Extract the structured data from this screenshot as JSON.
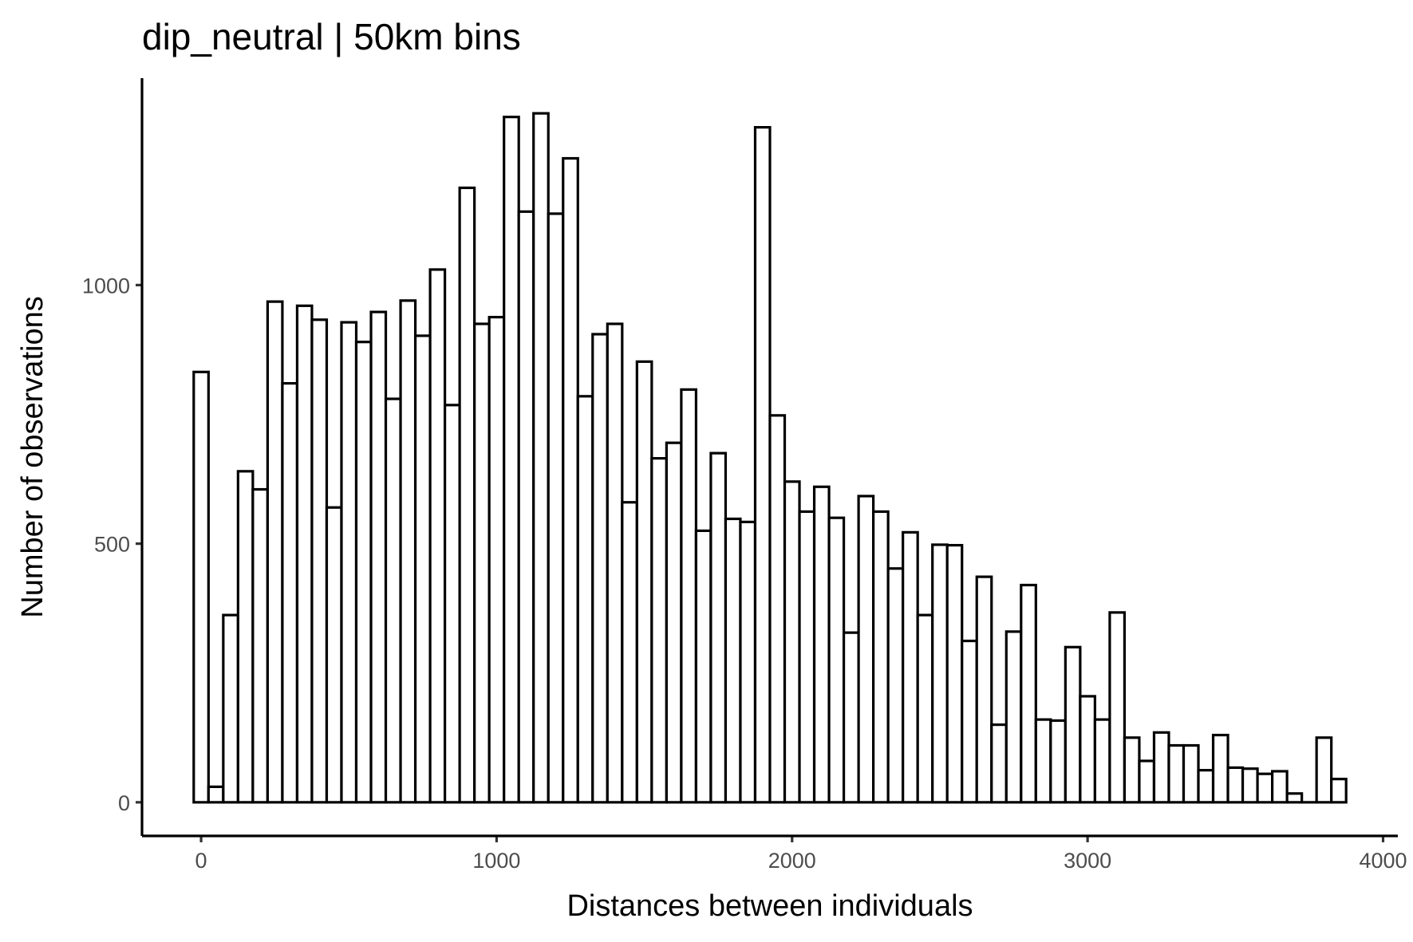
{
  "chart_data": {
    "type": "bar",
    "title": "dip_neutral | 50km bins",
    "xlabel": "Distances between individuals",
    "ylabel": "Number of observations",
    "bin_width": 50,
    "bin_starts": [
      -25,
      25,
      75,
      125,
      175,
      225,
      275,
      325,
      375,
      425,
      475,
      525,
      575,
      625,
      675,
      725,
      775,
      825,
      875,
      925,
      975,
      1025,
      1075,
      1125,
      1175,
      1225,
      1275,
      1325,
      1375,
      1425,
      1475,
      1525,
      1575,
      1625,
      1675,
      1725,
      1775,
      1825,
      1875,
      1925,
      1975,
      2025,
      2075,
      2125,
      2175,
      2225,
      2275,
      2325,
      2375,
      2425,
      2475,
      2525,
      2575,
      2625,
      2675,
      2725,
      2775,
      2825,
      2875,
      2925,
      2975,
      3025,
      3075,
      3125,
      3175,
      3225,
      3275,
      3325,
      3375,
      3425,
      3475,
      3525,
      3575,
      3625,
      3675,
      3725,
      3775,
      3825
    ],
    "values": [
      832,
      30,
      362,
      640,
      605,
      968,
      810,
      960,
      933,
      570,
      928,
      890,
      948,
      780,
      970,
      902,
      1030,
      768,
      1188,
      925,
      938,
      1325,
      1142,
      1332,
      1138,
      1245,
      785,
      905,
      925,
      580,
      852,
      665,
      695,
      798,
      525,
      675,
      548,
      542,
      1305,
      748,
      620,
      562,
      610,
      550,
      328,
      592,
      562,
      452,
      522,
      362,
      498,
      497,
      312,
      436,
      150,
      330,
      420,
      160,
      158,
      300,
      205,
      160,
      367,
      125,
      80,
      135,
      110,
      110,
      62,
      130,
      67,
      65,
      55,
      60,
      17,
      0,
      125,
      45
    ],
    "xlim": [
      -200,
      4050
    ],
    "ylim": [
      -65,
      1400
    ],
    "xticks": [
      0,
      1000,
      2000,
      3000,
      4000
    ],
    "xtick_labels": [
      "0",
      "1000",
      "2000",
      "3000",
      "4000"
    ],
    "yticks": [
      0,
      500,
      1000
    ],
    "ytick_labels": [
      "0",
      "500",
      "1000"
    ],
    "grid": false,
    "legend": "none",
    "bar_fill": "#ffffff",
    "bar_stroke": "#000000"
  }
}
